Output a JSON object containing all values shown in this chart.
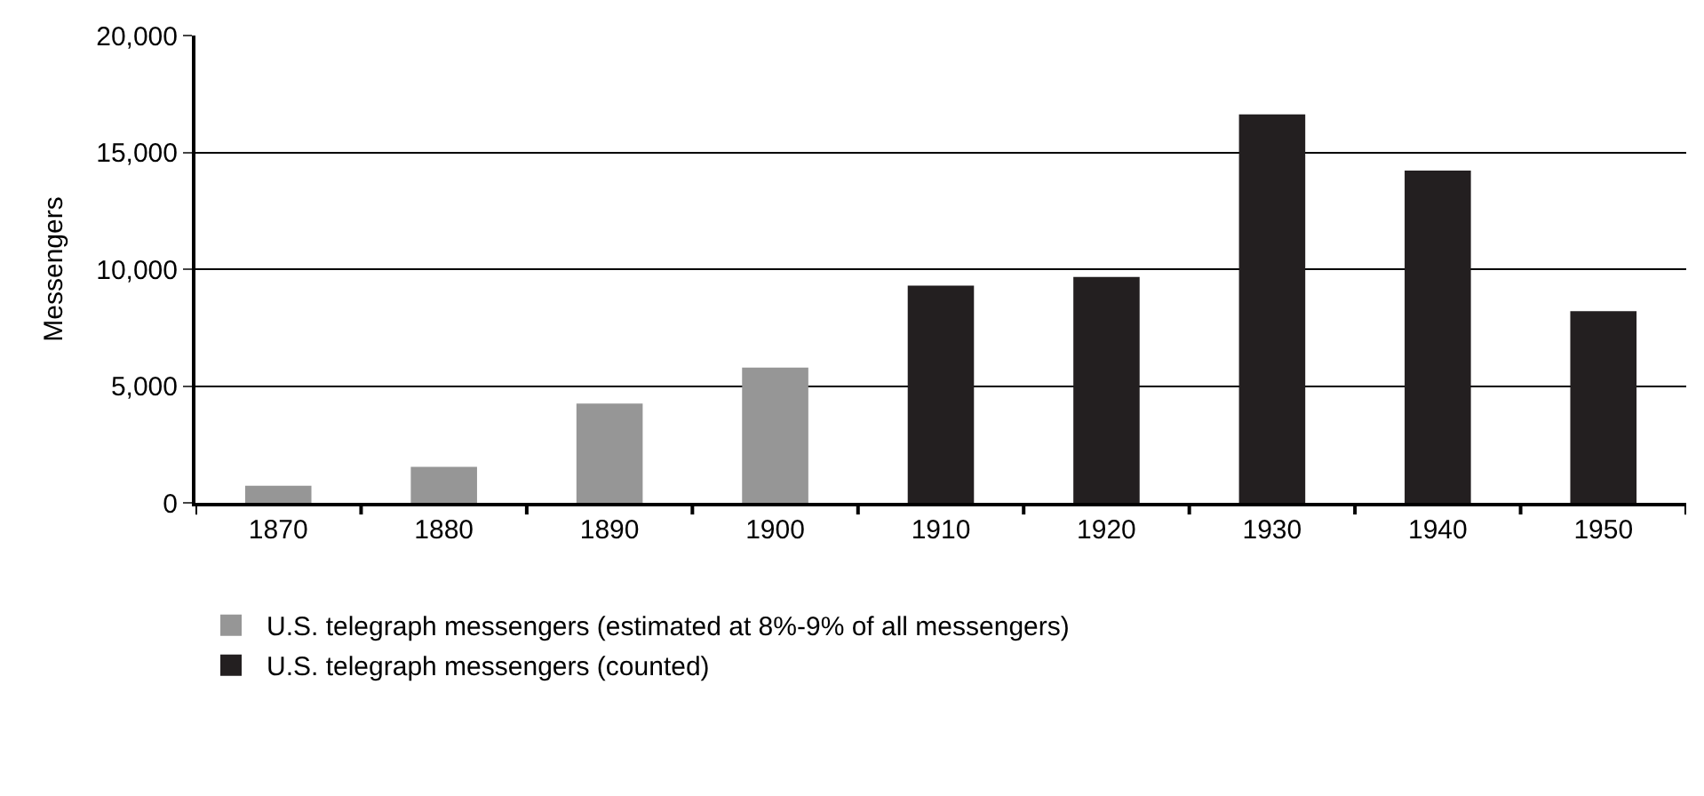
{
  "chart_data": {
    "type": "bar",
    "ylabel": "Messengers",
    "categories": [
      "1870",
      "1880",
      "1890",
      "1900",
      "1910",
      "1920",
      "1930",
      "1940",
      "1950"
    ],
    "series": [
      {
        "name": "U.S. telegraph messengers (estimated at 8%-9% of all messengers)",
        "color": "#969696",
        "values": [
          730,
          1540,
          4250,
          5790,
          null,
          null,
          null,
          null,
          null
        ]
      },
      {
        "name": "U.S. telegraph messengers (counted)",
        "color": "#231f20",
        "values": [
          null,
          null,
          null,
          null,
          9300,
          9670,
          16630,
          14220,
          8200
        ]
      }
    ],
    "ylim": [
      0,
      20000
    ],
    "yticks": [
      {
        "value": 0,
        "label": "0"
      },
      {
        "value": 5000,
        "label": "5,000"
      },
      {
        "value": 10000,
        "label": "10,000"
      },
      {
        "value": 15000,
        "label": "15,000"
      },
      {
        "value": 20000,
        "label": "20,000"
      }
    ],
    "grid": "y",
    "legend": "bottom left"
  }
}
